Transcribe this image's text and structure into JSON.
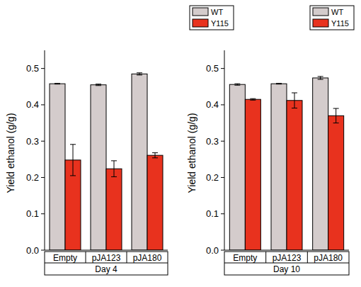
{
  "chart_data": [
    {
      "type": "bar",
      "x_label": "Day 4",
      "y_label": "Yield ethanol (g/g)",
      "categories": [
        "Empty",
        "pJA123",
        "pJA180"
      ],
      "series": [
        {
          "name": "WT",
          "color": "#d4cccc",
          "values": [
            0.458,
            0.455,
            0.485
          ],
          "errors": [
            0.001,
            0.002,
            0.003
          ]
        },
        {
          "name": "Y115",
          "color": "#e8321e",
          "values": [
            0.248,
            0.224,
            0.261
          ],
          "errors": [
            0.043,
            0.022,
            0.007
          ]
        }
      ],
      "ylim": [
        0,
        0.55
      ],
      "yticks": [
        {
          "value": 0,
          "label": "0.0"
        },
        0.1,
        0.2,
        0.3,
        0.4,
        0.5
      ],
      "legend": "top right"
    },
    {
      "type": "bar",
      "x_label": "Day 10",
      "y_label": "Yield ethanol (g/g)",
      "categories": [
        "Empty",
        "pJA123",
        "pJA180"
      ],
      "series": [
        {
          "name": "WT",
          "color": "#d4cccc",
          "values": [
            0.456,
            0.458,
            0.474
          ],
          "errors": [
            0.002,
            0.001,
            0.004
          ]
        },
        {
          "name": "Y115",
          "color": "#e8321e",
          "values": [
            0.415,
            0.412,
            0.37
          ],
          "errors": [
            0.002,
            0.021,
            0.02
          ]
        }
      ],
      "ylim": [
        0,
        0.55
      ],
      "yticks": [
        {
          "value": 0,
          "label": "0.0"
        },
        0.1,
        0.2,
        0.3,
        0.4,
        0.5
      ],
      "legend": "top right"
    }
  ]
}
